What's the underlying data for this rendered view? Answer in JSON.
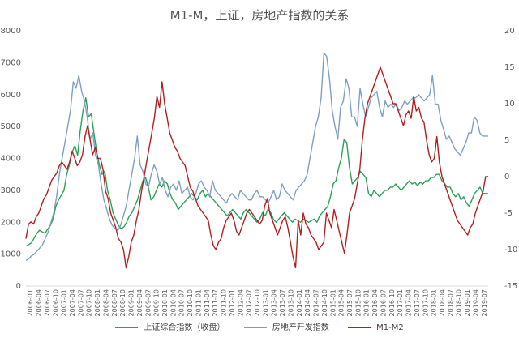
{
  "chart_data": {
    "type": "line",
    "title": "M1-M，上证，房地产指数的关系",
    "xlabel": "",
    "ylabel_left": "",
    "ylabel_right": "",
    "ylim_left": [
      0,
      8000
    ],
    "ylim_right": [
      -15,
      20
    ],
    "y_ticks_left": [
      "0",
      "1000",
      "2000",
      "3000",
      "4000",
      "5000",
      "6000",
      "7000",
      "8000"
    ],
    "y_ticks_right": [
      "-15",
      "-10",
      "-5",
      "0",
      "5",
      "10",
      "15",
      "20"
    ],
    "x_ticks": [
      "2006-01",
      "2006-04",
      "2006-07",
      "2006-10",
      "2007-01",
      "2007-04",
      "2007-07",
      "2007-10",
      "2008-01",
      "2008-04",
      "2008-07",
      "2008-10",
      "2009-01",
      "2009-04",
      "2009-07",
      "2009-10",
      "2010-01",
      "2010-04",
      "2010-07",
      "2010-10",
      "2011-01",
      "2011-04",
      "2011-07",
      "2011-10",
      "2012-01",
      "2012-04",
      "2012-07",
      "2012-10",
      "2013-01",
      "2013-04",
      "2013-07",
      "2013-10",
      "2014-01",
      "2014-04",
      "2014-07",
      "2014-10",
      "2015-01",
      "2015-04",
      "2015-07",
      "2015-10",
      "2016-01",
      "2016-04",
      "2016-07",
      "2016-10",
      "2017-01",
      "2017-04",
      "2017-07",
      "2017-10",
      "2018-01",
      "2018-04",
      "2018-07",
      "2018-10",
      "2019-01",
      "2019-04",
      "2019-07"
    ],
    "grid": false,
    "legend_position": "bottom",
    "series": [
      {
        "name": "上证综合指数（收盘）",
        "axis": "left",
        "color": "#2ca05a",
        "values": [
          1250,
          1300,
          1350,
          1500,
          1650,
          1750,
          1700,
          1650,
          1780,
          1900,
          2100,
          2500,
          2700,
          2850,
          3000,
          3500,
          3800,
          4200,
          4400,
          4100,
          4900,
          5500,
          5900,
          5300,
          5400,
          4800,
          4200,
          3800,
          3500,
          3600,
          3000,
          2700,
          2300,
          2100,
          1900,
          1800,
          1850,
          2000,
          2200,
          2300,
          2500,
          2700,
          3000,
          3300,
          3400,
          3100,
          2700,
          2800,
          3000,
          3200,
          3100,
          3300,
          3200,
          2900,
          2700,
          2600,
          2400,
          2500,
          2600,
          2700,
          2800,
          2900,
          2800,
          2700,
          2900,
          3000,
          2800,
          2900,
          2800,
          2700,
          2600,
          2500,
          2400,
          2300,
          2200,
          2300,
          2400,
          2300,
          2200,
          2100,
          2300,
          2400,
          2300,
          2200,
          2100,
          2000,
          2100,
          2300,
          2200,
          2400,
          2300,
          2100,
          2000,
          2100,
          2200,
          2300,
          2200,
          2100,
          2000,
          2100,
          2050,
          2000,
          2100,
          2050,
          2000,
          2050,
          2100,
          2000,
          2200,
          2300,
          2400,
          2500,
          2800,
          3200,
          3300,
          3700,
          4000,
          4600,
          4500,
          3700,
          3200,
          3300,
          3400,
          3600,
          3500,
          3400,
          2900,
          2800,
          3000,
          2900,
          2800,
          2900,
          3000,
          3000,
          3100,
          3100,
          3200,
          3100,
          3000,
          3100,
          3200,
          3300,
          3200,
          3250,
          3150,
          3250,
          3200,
          3300,
          3300,
          3400,
          3400,
          3500,
          3500,
          3300,
          3200,
          3100,
          3100,
          2900,
          2800,
          2900,
          2700,
          2800,
          2600,
          2500,
          2700,
          2900,
          3000,
          3100,
          2900,
          2900,
          2900
        ]
      },
      {
        "name": "房地产开发指数",
        "axis": "left",
        "color": "#7f9fc0",
        "values": [
          800,
          850,
          950,
          1000,
          1100,
          1200,
          1300,
          1500,
          1700,
          2000,
          2300,
          2800,
          3500,
          4000,
          4500,
          5000,
          5500,
          6400,
          6200,
          6600,
          6100,
          5800,
          5300,
          4600,
          4800,
          4100,
          3800,
          3200,
          2700,
          2400,
          2100,
          1900,
          1800,
          1750,
          1900,
          2200,
          2500,
          3000,
          3500,
          4000,
          4700,
          3800,
          3600,
          3200,
          3100,
          3500,
          3800,
          3600,
          3200,
          3400,
          3000,
          2800,
          3100,
          3200,
          3000,
          3300,
          2900,
          3000,
          3100,
          2800,
          2700,
          2900,
          3200,
          3300,
          3100,
          3000,
          2800,
          3300,
          3000,
          2900,
          2800,
          2700,
          2600,
          2800,
          2900,
          2800,
          2700,
          3000,
          2900,
          2800,
          2700,
          2700,
          2900,
          3000,
          2800,
          2800,
          2700,
          2600,
          2800,
          3000,
          2700,
          2800,
          3200,
          3000,
          2900,
          2800,
          2700,
          3000,
          3100,
          3200,
          3300,
          3500,
          4000,
          4500,
          5000,
          5300,
          5900,
          7300,
          7200,
          6500,
          5500,
          5000,
          4600,
          5600,
          5800,
          6500,
          6200,
          5300,
          5300,
          5000,
          6200,
          5700,
          5300,
          5600,
          5900,
          6000,
          6100,
          5600,
          5300,
          5800,
          5600,
          5700,
          5600,
          5700,
          5500,
          5600,
          5800,
          5700,
          5800,
          5900,
          5900,
          6000,
          5900,
          5800,
          5900,
          6000,
          6600,
          5700,
          5700,
          5200,
          4900,
          4600,
          4700,
          4500,
          4300,
          4200,
          4100,
          4300,
          4500,
          4800,
          4800,
          5300,
          5200,
          4800,
          4700,
          4700,
          4700
        ]
      },
      {
        "name": "M1-M2",
        "axis": "right",
        "color": "#b02020",
        "values": [
          -8.5,
          -6.5,
          -6.2,
          -6.5,
          -5.5,
          -5,
          -4,
          -3,
          -2.5,
          -1.5,
          -0.5,
          0,
          0.5,
          1.5,
          2,
          1.5,
          1,
          2,
          3.5,
          2.5,
          1.5,
          2,
          3,
          5.5,
          7,
          5,
          3,
          4,
          2.5,
          2.5,
          1,
          -2,
          -3,
          -5,
          -6,
          -7,
          -8.5,
          -9,
          -10,
          -12.5,
          -11,
          -9,
          -8,
          -6,
          -4.5,
          -2,
          0,
          2,
          4,
          6,
          8,
          11,
          9.5,
          13,
          10,
          8,
          6,
          5,
          4,
          3.5,
          2.5,
          2,
          1.5,
          0,
          -1.5,
          -2,
          -3,
          -4,
          -4.5,
          -5,
          -5.5,
          -6,
          -8,
          -9.5,
          -10,
          -9,
          -8.5,
          -7,
          -6,
          -5.5,
          -5,
          -6,
          -7.5,
          -8,
          -7,
          -6,
          -5,
          -4.5,
          -5,
          -5.5,
          -6,
          -6.5,
          -6,
          -4,
          -3,
          -5,
          -6,
          -7,
          -8,
          -7,
          -6,
          -5.5,
          -7,
          -9,
          -11,
          -12.5,
          -6,
          -8,
          -5,
          -6.5,
          -7,
          -8,
          -8.5,
          -9,
          -10,
          -9.5,
          -9,
          -5,
          -6,
          -7,
          -4.5,
          -6,
          -7.5,
          -9,
          -10.5,
          -8,
          -5,
          -4,
          -3,
          -1,
          1,
          5,
          8,
          10,
          11,
          12,
          13,
          14,
          15,
          14,
          13,
          12,
          11,
          10,
          10,
          9,
          8,
          7,
          8.5,
          9,
          8,
          11,
          9,
          9.5,
          8,
          7.5,
          5,
          3,
          2,
          2.5,
          5.5,
          2,
          0,
          -1,
          -2,
          -3,
          -4,
          -5,
          -6,
          -6.5,
          -7,
          -7.5,
          -8,
          -7,
          -6.5,
          -5,
          -4,
          -3,
          -2,
          0,
          0
        ]
      }
    ]
  }
}
